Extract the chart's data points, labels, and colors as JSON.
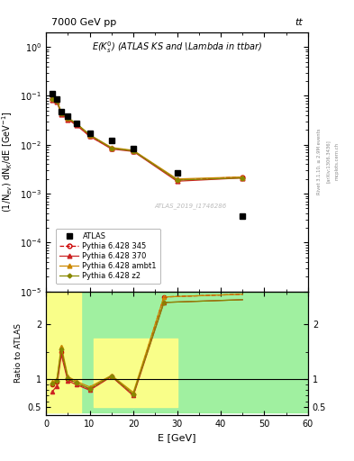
{
  "title_top": "7000 GeV pp",
  "title_right": "tt",
  "plot_title": "E(K$_s^0$) (ATLAS KS and \\Lambda in ttbar)",
  "xlabel": "E [GeV]",
  "ylabel_main": "(1/N$_{ev}$) dN$_K$/dE [GeV$^{-1}$]",
  "ylabel_ratio": "Ratio to ATLAS",
  "watermark": "ATLAS_2019_I1746286",
  "rivet_label": "Rivet 3.1.10, ≥ 2.9M events",
  "arxiv_label": "[arXiv:1306.3436]",
  "mcplots_label": "mcplots.cern.ch",
  "atlas_x": [
    1.5,
    2.5,
    3.5,
    5.0,
    7.0,
    10.0,
    15.0,
    20.0,
    30.0,
    45.0
  ],
  "atlas_y": [
    0.11,
    0.085,
    0.048,
    0.038,
    0.028,
    0.017,
    0.012,
    0.0085,
    0.0027,
    0.00035
  ],
  "pythia_x": [
    1.5,
    2.5,
    3.5,
    5.0,
    7.0,
    10.0,
    15.0,
    20.0,
    30.0,
    45.0
  ],
  "p345_y": [
    0.085,
    0.078,
    0.043,
    0.034,
    0.026,
    0.015,
    0.0085,
    0.0075,
    0.0019,
    0.0022
  ],
  "p370_y": [
    0.082,
    0.075,
    0.042,
    0.033,
    0.025,
    0.015,
    0.0082,
    0.0073,
    0.0018,
    0.0021
  ],
  "pambt1_y": [
    0.09,
    0.082,
    0.046,
    0.036,
    0.027,
    0.016,
    0.0088,
    0.0077,
    0.002,
    0.0022
  ],
  "pz2_y": [
    0.087,
    0.08,
    0.044,
    0.035,
    0.027,
    0.016,
    0.0085,
    0.0075,
    0.0019,
    0.0021
  ],
  "ratio_x": [
    1.5,
    2.5,
    3.5,
    5.0,
    7.0,
    10.0,
    15.0,
    20.0,
    27.0,
    35.0,
    45.0
  ],
  "ratio_345": [
    0.9,
    0.95,
    1.5,
    1.0,
    0.93,
    0.82,
    1.05,
    0.72,
    2.5,
    2.5,
    2.5
  ],
  "ratio_370": [
    0.78,
    0.88,
    1.45,
    0.97,
    0.9,
    0.8,
    1.05,
    0.7,
    2.4,
    2.4,
    2.4
  ],
  "ratio_ambt1": [
    0.95,
    1.0,
    1.6,
    1.05,
    0.96,
    0.86,
    1.07,
    0.76,
    2.5,
    2.5,
    2.5
  ],
  "ratio_z2": [
    0.92,
    0.97,
    1.55,
    1.02,
    0.93,
    0.83,
    1.06,
    0.73,
    2.4,
    2.4,
    2.4
  ],
  "color_345": "#cc0000",
  "color_370": "#cc2222",
  "color_ambt1": "#cc8800",
  "color_z2": "#888800",
  "main_ylim_lo": 1e-05,
  "main_ylim_hi": 2.0,
  "ratio_ylim_lo": 0.35,
  "ratio_ylim_hi": 2.6,
  "xlim_lo": 0.0,
  "xlim_hi": 60.0
}
